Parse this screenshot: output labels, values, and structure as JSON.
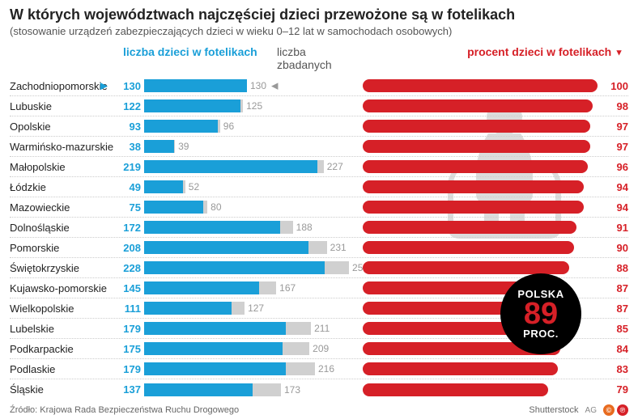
{
  "title": "W których województwach najczęściej dzieci przewożone są w fotelikach",
  "subtitle": "(stosowanie urządzeń zabezpieczających dzieci w wieku 0–12 lat w samochodach osobowych)",
  "column_headers": {
    "left": "liczba dzieci w fotelikach",
    "mid": "liczba zbadanych",
    "right": "procent dzieci w fotelikach"
  },
  "colors": {
    "blue": "#1a9fd8",
    "gray_bar": "#d0d0d0",
    "gray_text": "#999999",
    "red": "#d62027",
    "black": "#000000",
    "background": "#ffffff"
  },
  "bar_max_examined": 260,
  "pct_max": 100,
  "regions": [
    {
      "name": "Zachodniopomorskie",
      "in_seats": 130,
      "examined": 130,
      "pct": 100,
      "first": true
    },
    {
      "name": "Lubuskie",
      "in_seats": 122,
      "examined": 125,
      "pct": 98
    },
    {
      "name": "Opolskie",
      "in_seats": 93,
      "examined": 96,
      "pct": 97
    },
    {
      "name": "Warmińsko-mazurskie",
      "in_seats": 38,
      "examined": 39,
      "pct": 97
    },
    {
      "name": "Małopolskie",
      "in_seats": 219,
      "examined": 227,
      "pct": 96
    },
    {
      "name": "Łódzkie",
      "in_seats": 49,
      "examined": 52,
      "pct": 94
    },
    {
      "name": "Mazowieckie",
      "in_seats": 75,
      "examined": 80,
      "pct": 94
    },
    {
      "name": "Dolnośląskie",
      "in_seats": 172,
      "examined": 188,
      "pct": 91
    },
    {
      "name": "Pomorskie",
      "in_seats": 208,
      "examined": 231,
      "pct": 90
    },
    {
      "name": "Świętokrzyskie",
      "in_seats": 228,
      "examined": 259,
      "pct": 88
    },
    {
      "name": "Kujawsko-pomorskie",
      "in_seats": 145,
      "examined": 167,
      "pct": 87
    },
    {
      "name": "Wielkopolskie",
      "in_seats": 111,
      "examined": 127,
      "pct": 87
    },
    {
      "name": "Lubelskie",
      "in_seats": 179,
      "examined": 211,
      "pct": 85
    },
    {
      "name": "Podkarpackie",
      "in_seats": 175,
      "examined": 209,
      "pct": 84
    },
    {
      "name": "Podlaskie",
      "in_seats": 179,
      "examined": 216,
      "pct": 83
    },
    {
      "name": "Śląskie",
      "in_seats": 137,
      "examined": 173,
      "pct": 79
    }
  ],
  "poland_badge": {
    "label_top": "POLSKA",
    "value": "89",
    "label_bottom": "PROC."
  },
  "source": "Źródło: Krajowa Rada Bezpieczeństwa Ruchu Drogowego",
  "credit": "Shutterstock",
  "author": "AG"
}
